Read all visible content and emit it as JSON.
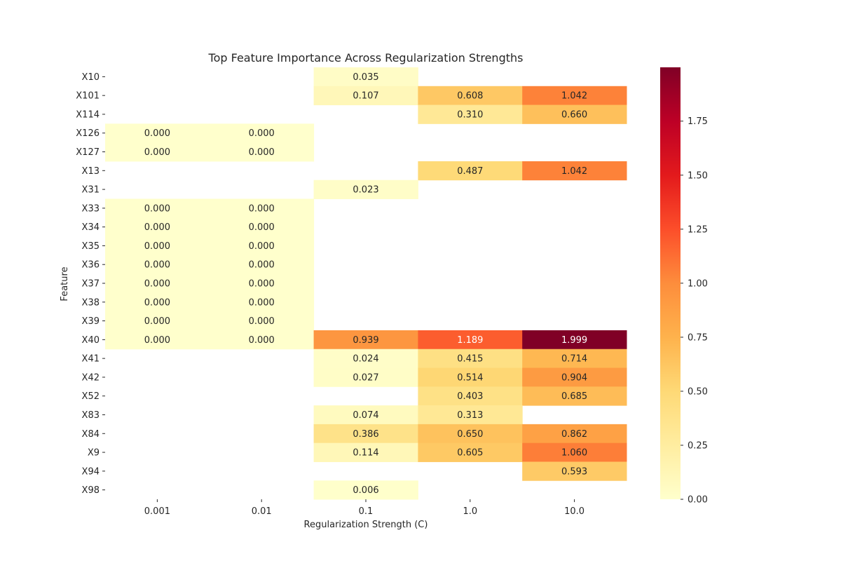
{
  "chart_data": {
    "type": "heatmap",
    "title": "Top Feature Importance Across Regularization Strengths",
    "xlabel": "Regularization Strength (C)",
    "ylabel": "Feature",
    "x_categories": [
      "0.001",
      "0.01",
      "0.1",
      "1.0",
      "10.0"
    ],
    "y_categories": [
      "X10",
      "X101",
      "X114",
      "X126",
      "X127",
      "X13",
      "X31",
      "X33",
      "X34",
      "X35",
      "X36",
      "X37",
      "X38",
      "X39",
      "X40",
      "X41",
      "X42",
      "X52",
      "X83",
      "X84",
      "X9",
      "X94",
      "X98"
    ],
    "values": [
      [
        null,
        null,
        0.035,
        null,
        null
      ],
      [
        null,
        null,
        0.107,
        0.608,
        1.042
      ],
      [
        null,
        null,
        null,
        0.31,
        0.66
      ],
      [
        0.0,
        0.0,
        null,
        null,
        null
      ],
      [
        0.0,
        0.0,
        null,
        null,
        null
      ],
      [
        null,
        null,
        null,
        0.487,
        1.042
      ],
      [
        null,
        null,
        0.023,
        null,
        null
      ],
      [
        0.0,
        0.0,
        null,
        null,
        null
      ],
      [
        0.0,
        0.0,
        null,
        null,
        null
      ],
      [
        0.0,
        0.0,
        null,
        null,
        null
      ],
      [
        0.0,
        0.0,
        null,
        null,
        null
      ],
      [
        0.0,
        0.0,
        null,
        null,
        null
      ],
      [
        0.0,
        0.0,
        null,
        null,
        null
      ],
      [
        0.0,
        0.0,
        null,
        null,
        null
      ],
      [
        0.0,
        0.0,
        0.939,
        1.189,
        1.999
      ],
      [
        null,
        null,
        0.024,
        0.415,
        0.714
      ],
      [
        null,
        null,
        0.027,
        0.514,
        0.904
      ],
      [
        null,
        null,
        null,
        0.403,
        0.685
      ],
      [
        null,
        null,
        0.074,
        0.313,
        null
      ],
      [
        null,
        null,
        0.386,
        0.65,
        0.862
      ],
      [
        null,
        null,
        0.114,
        0.605,
        1.06
      ],
      [
        null,
        null,
        null,
        null,
        0.593
      ],
      [
        null,
        null,
        0.006,
        null,
        null
      ]
    ],
    "colormap": "YlOrRd",
    "vmin": 0,
    "vmax": 1.999,
    "colorbar_ticks": [
      "0.00",
      "0.25",
      "0.50",
      "0.75",
      "1.00",
      "1.25",
      "1.50",
      "1.75"
    ],
    "annotations": true,
    "grid": false,
    "legend": "colorbar-right"
  }
}
